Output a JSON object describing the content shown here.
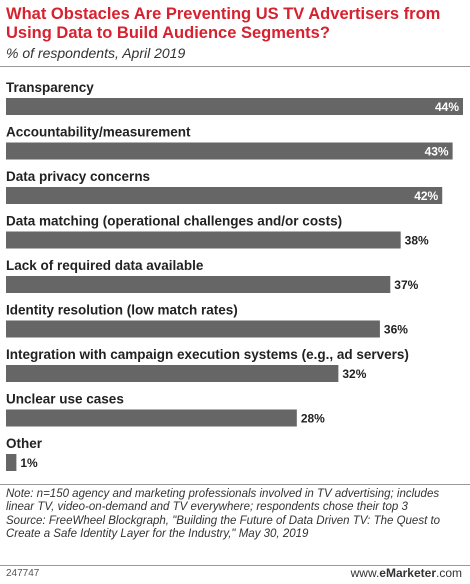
{
  "header": {
    "title": "What Obstacles Are Preventing US TV Advertisers from Using Data to Build Audience Segments?",
    "subtitle": "% of respondents, April 2019"
  },
  "chart_data": {
    "type": "bar",
    "orientation": "horizontal",
    "categories": [
      "Transparency",
      "Accountability/measurement",
      "Data privacy concerns",
      "Data matching (operational challenges and/or costs)",
      "Lack of required data available",
      "Identity resolution (low match rates)",
      "Integration with campaign execution systems (e.g., ad servers)",
      "Unclear use cases",
      "Other"
    ],
    "values": [
      44,
      43,
      42,
      38,
      37,
      36,
      32,
      28,
      1
    ],
    "value_labels": [
      "44%",
      "43%",
      "42%",
      "38%",
      "37%",
      "36%",
      "32%",
      "28%",
      "1%"
    ],
    "bar_color": "#666666",
    "xlim": [
      0,
      44
    ],
    "grid": false
  },
  "footer": {
    "note": "Note: n=150 agency and marketing professionals involved in TV advertising; includes linear TV, video-on-demand and TV everywhere; respondents chose their top 3",
    "source": "Source: FreeWheel Blockgraph, \"Building the Future of Data Driven TV: The Quest to Create a Safe Identity Layer for the Industry,\" May 30, 2019",
    "chart_id": "247747",
    "brand_prefix": "www.",
    "brand_name": "eMarketer",
    "brand_suffix": ".com"
  }
}
